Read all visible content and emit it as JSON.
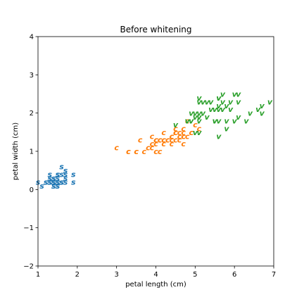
{
  "chart_data": {
    "type": "scatter",
    "title": "Before whitening",
    "xlabel": "petal length (cm)",
    "ylabel": "petal width (cm)",
    "xlim": [
      1,
      7
    ],
    "ylim": [
      -2,
      4
    ],
    "xticks": [
      "1",
      "2",
      "3",
      "4",
      "5",
      "6",
      "7"
    ],
    "yticks": [
      "−2",
      "−1",
      "0",
      "1",
      "2",
      "3",
      "4"
    ],
    "grid": false,
    "legend": "none",
    "series": [
      {
        "marker": "s",
        "color": "#1f77b4",
        "points": [
          [
            1.4,
            0.2
          ],
          [
            1.4,
            0.2
          ],
          [
            1.3,
            0.2
          ],
          [
            1.5,
            0.2
          ],
          [
            1.4,
            0.2
          ],
          [
            1.7,
            0.4
          ],
          [
            1.4,
            0.3
          ],
          [
            1.5,
            0.2
          ],
          [
            1.4,
            0.2
          ],
          [
            1.5,
            0.1
          ],
          [
            1.5,
            0.2
          ],
          [
            1.6,
            0.2
          ],
          [
            1.4,
            0.1
          ],
          [
            1.1,
            0.1
          ],
          [
            1.2,
            0.2
          ],
          [
            1.5,
            0.4
          ],
          [
            1.3,
            0.4
          ],
          [
            1.4,
            0.3
          ],
          [
            1.7,
            0.3
          ],
          [
            1.5,
            0.3
          ],
          [
            1.7,
            0.2
          ],
          [
            1.5,
            0.4
          ],
          [
            1.0,
            0.2
          ],
          [
            1.7,
            0.5
          ],
          [
            1.9,
            0.2
          ],
          [
            1.6,
            0.2
          ],
          [
            1.6,
            0.4
          ],
          [
            1.5,
            0.2
          ],
          [
            1.4,
            0.2
          ],
          [
            1.6,
            0.2
          ],
          [
            1.6,
            0.2
          ],
          [
            1.5,
            0.4
          ],
          [
            1.5,
            0.1
          ],
          [
            1.4,
            0.2
          ],
          [
            1.5,
            0.2
          ],
          [
            1.2,
            0.2
          ],
          [
            1.3,
            0.2
          ],
          [
            1.4,
            0.1
          ],
          [
            1.3,
            0.2
          ],
          [
            1.5,
            0.2
          ],
          [
            1.3,
            0.3
          ],
          [
            1.3,
            0.3
          ],
          [
            1.3,
            0.2
          ],
          [
            1.6,
            0.6
          ],
          [
            1.9,
            0.4
          ],
          [
            1.4,
            0.3
          ],
          [
            1.6,
            0.2
          ],
          [
            1.4,
            0.2
          ],
          [
            1.5,
            0.2
          ],
          [
            1.4,
            0.2
          ]
        ]
      },
      {
        "marker": "c",
        "color": "#ff7f0e",
        "points": [
          [
            4.7,
            1.4
          ],
          [
            4.5,
            1.5
          ],
          [
            4.9,
            1.5
          ],
          [
            4.0,
            1.3
          ],
          [
            4.6,
            1.5
          ],
          [
            4.5,
            1.3
          ],
          [
            4.7,
            1.6
          ],
          [
            3.3,
            1.0
          ],
          [
            4.6,
            1.3
          ],
          [
            3.9,
            1.4
          ],
          [
            3.5,
            1.0
          ],
          [
            4.2,
            1.5
          ],
          [
            4.0,
            1.0
          ],
          [
            4.7,
            1.4
          ],
          [
            3.6,
            1.3
          ],
          [
            4.4,
            1.4
          ],
          [
            4.5,
            1.5
          ],
          [
            4.1,
            1.0
          ],
          [
            4.5,
            1.5
          ],
          [
            3.9,
            1.1
          ],
          [
            4.8,
            1.8
          ],
          [
            4.0,
            1.3
          ],
          [
            4.9,
            1.5
          ],
          [
            4.7,
            1.2
          ],
          [
            4.3,
            1.3
          ],
          [
            4.4,
            1.4
          ],
          [
            4.8,
            1.4
          ],
          [
            5.0,
            1.7
          ],
          [
            4.5,
            1.5
          ],
          [
            3.5,
            1.0
          ],
          [
            3.8,
            1.1
          ],
          [
            3.7,
            1.0
          ],
          [
            3.9,
            1.2
          ],
          [
            5.1,
            1.6
          ],
          [
            4.5,
            1.5
          ],
          [
            4.5,
            1.6
          ],
          [
            4.7,
            1.5
          ],
          [
            4.4,
            1.3
          ],
          [
            4.1,
            1.3
          ],
          [
            4.0,
            1.3
          ],
          [
            4.4,
            1.2
          ],
          [
            4.6,
            1.4
          ],
          [
            4.0,
            1.2
          ],
          [
            3.3,
            1.0
          ],
          [
            4.2,
            1.3
          ],
          [
            4.2,
            1.2
          ],
          [
            4.2,
            1.3
          ],
          [
            4.3,
            1.3
          ],
          [
            3.0,
            1.1
          ],
          [
            4.1,
            1.3
          ]
        ]
      },
      {
        "marker": "v",
        "color": "#2ca02c",
        "points": [
          [
            6.0,
            2.5
          ],
          [
            5.1,
            1.9
          ],
          [
            5.9,
            2.1
          ],
          [
            5.6,
            1.8
          ],
          [
            5.8,
            2.2
          ],
          [
            6.6,
            2.1
          ],
          [
            4.5,
            1.7
          ],
          [
            6.3,
            1.8
          ],
          [
            5.8,
            1.8
          ],
          [
            6.1,
            2.5
          ],
          [
            5.1,
            2.0
          ],
          [
            5.3,
            1.9
          ],
          [
            5.5,
            2.1
          ],
          [
            5.0,
            2.0
          ],
          [
            5.1,
            2.4
          ],
          [
            5.3,
            2.3
          ],
          [
            5.5,
            1.8
          ],
          [
            6.7,
            2.2
          ],
          [
            6.9,
            2.3
          ],
          [
            5.0,
            1.5
          ],
          [
            5.7,
            2.3
          ],
          [
            4.9,
            2.0
          ],
          [
            6.7,
            2.0
          ],
          [
            4.9,
            1.8
          ],
          [
            5.7,
            2.1
          ],
          [
            6.0,
            1.8
          ],
          [
            4.8,
            1.8
          ],
          [
            4.9,
            1.8
          ],
          [
            5.6,
            2.1
          ],
          [
            5.8,
            1.6
          ],
          [
            6.1,
            1.9
          ],
          [
            6.4,
            2.0
          ],
          [
            5.6,
            2.2
          ],
          [
            5.1,
            1.5
          ],
          [
            5.6,
            1.4
          ],
          [
            6.1,
            2.3
          ],
          [
            5.6,
            2.4
          ],
          [
            5.5,
            1.8
          ],
          [
            4.8,
            1.8
          ],
          [
            5.4,
            2.1
          ],
          [
            5.6,
            2.4
          ],
          [
            5.1,
            2.3
          ],
          [
            5.1,
            1.9
          ],
          [
            5.9,
            2.3
          ],
          [
            5.7,
            2.5
          ],
          [
            5.2,
            2.3
          ],
          [
            5.0,
            1.9
          ],
          [
            5.2,
            2.0
          ],
          [
            5.4,
            2.3
          ],
          [
            5.1,
            1.8
          ]
        ]
      }
    ]
  }
}
